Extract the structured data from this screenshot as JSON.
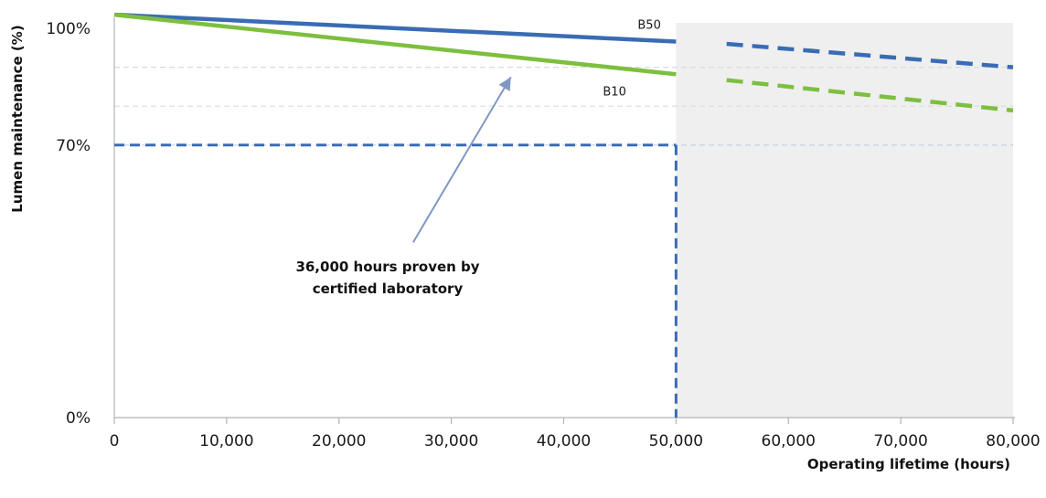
{
  "chart_data": {
    "type": "line",
    "xlabel": "Operating lifetime (hours)",
    "ylabel": "Lumen maintenance (%)",
    "xlim": [
      0,
      80000
    ],
    "ylim": [
      0,
      100
    ],
    "x_ticks": [
      {
        "value": 0,
        "label": "0"
      },
      {
        "value": 10000,
        "label": "10,000"
      },
      {
        "value": 20000,
        "label": "20,000"
      },
      {
        "value": 30000,
        "label": "30,000"
      },
      {
        "value": 40000,
        "label": "40,000"
      },
      {
        "value": 50000,
        "label": "50,000"
      },
      {
        "value": 60000,
        "label": "60,000"
      },
      {
        "value": 70000,
        "label": "70,000"
      },
      {
        "value": 80000,
        "label": "80,000"
      }
    ],
    "y_ticks": [
      {
        "value": 0,
        "label": "0%"
      },
      {
        "value": 70,
        "label": "70%"
      },
      {
        "value": 100,
        "label": "100%"
      }
    ],
    "gridlines_y": [
      70,
      80,
      90
    ],
    "shaded_region": {
      "x_start": 50000,
      "x_end": 80000,
      "color": "#efefef"
    },
    "series": [
      {
        "name": "B50",
        "color": "#3a6cb4",
        "measured": [
          [
            0,
            103.5
          ],
          [
            50000,
            96.6
          ]
        ],
        "projected": [
          [
            54500,
            96.0
          ],
          [
            80000,
            90.0
          ]
        ]
      },
      {
        "name": "B10",
        "color": "#7dbf3f",
        "measured": [
          [
            0,
            103.5
          ],
          [
            50000,
            88.2
          ]
        ],
        "projected": [
          [
            54500,
            86.7
          ],
          [
            80000,
            78.9
          ]
        ]
      }
    ],
    "reference_lines": {
      "color": "#3a6cb4",
      "horizontal": {
        "y": 70,
        "x_start": 0,
        "x_end": 50000
      },
      "vertical": {
        "x": 50000,
        "y_start": 0,
        "y_end": 70
      }
    },
    "annotation": {
      "lines": [
        "36,000 hours proven by",
        "certified laboratory"
      ],
      "arrow_from": [
        26600,
        45
      ],
      "arrow_to": [
        35300,
        87.5
      ],
      "color": "#7f98c4"
    }
  }
}
